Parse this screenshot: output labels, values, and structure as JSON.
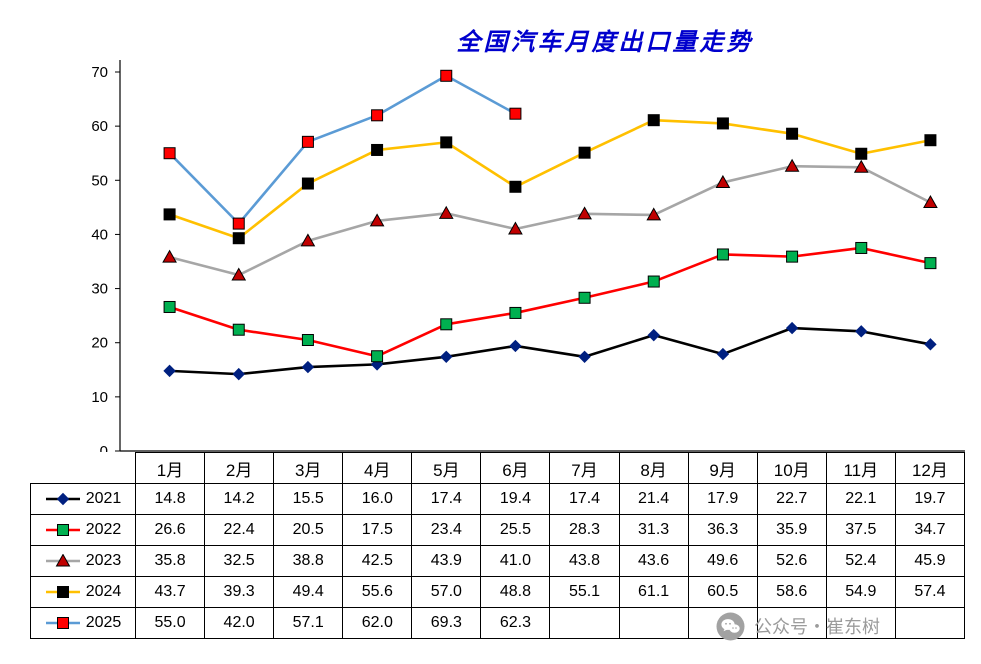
{
  "chart_data": {
    "type": "line",
    "title": "全国汽车月度出口量走势",
    "categories": [
      "1月",
      "2月",
      "3月",
      "4月",
      "5月",
      "6月",
      "7月",
      "8月",
      "9月",
      "10月",
      "11月",
      "12月"
    ],
    "ylim": [
      0,
      70
    ],
    "ytick_step": 10,
    "grid": false,
    "legend_position": "table-left-column",
    "series": [
      {
        "name": "2021",
        "line_color": "#000000",
        "marker": "diamond",
        "marker_color": "#002080",
        "values": [
          14.8,
          14.2,
          15.5,
          16.0,
          17.4,
          19.4,
          17.4,
          21.4,
          17.9,
          22.7,
          22.1,
          19.7
        ]
      },
      {
        "name": "2022",
        "line_color": "#ff0000",
        "marker": "square",
        "marker_color": "#00b050",
        "values": [
          26.6,
          22.4,
          20.5,
          17.5,
          23.4,
          25.5,
          28.3,
          31.3,
          36.3,
          35.9,
          37.5,
          34.7
        ]
      },
      {
        "name": "2023",
        "line_color": "#a6a6a6",
        "marker": "triangle",
        "marker_color": "#c00000",
        "values": [
          35.8,
          32.5,
          38.8,
          42.5,
          43.9,
          41.0,
          43.8,
          43.6,
          49.6,
          52.6,
          52.4,
          45.9
        ]
      },
      {
        "name": "2024",
        "line_color": "#ffc000",
        "marker": "square",
        "marker_color": "#000000",
        "values": [
          43.7,
          39.3,
          49.4,
          55.6,
          57.0,
          48.8,
          55.1,
          61.1,
          60.5,
          58.6,
          54.9,
          57.4
        ]
      },
      {
        "name": "2025",
        "line_color": "#5b9bd5",
        "marker": "square",
        "marker_color": "#ff0000",
        "values": [
          55.0,
          42.0,
          57.1,
          62.0,
          69.3,
          62.3
        ]
      }
    ]
  },
  "watermark": {
    "text": "公众号・崔东树"
  }
}
